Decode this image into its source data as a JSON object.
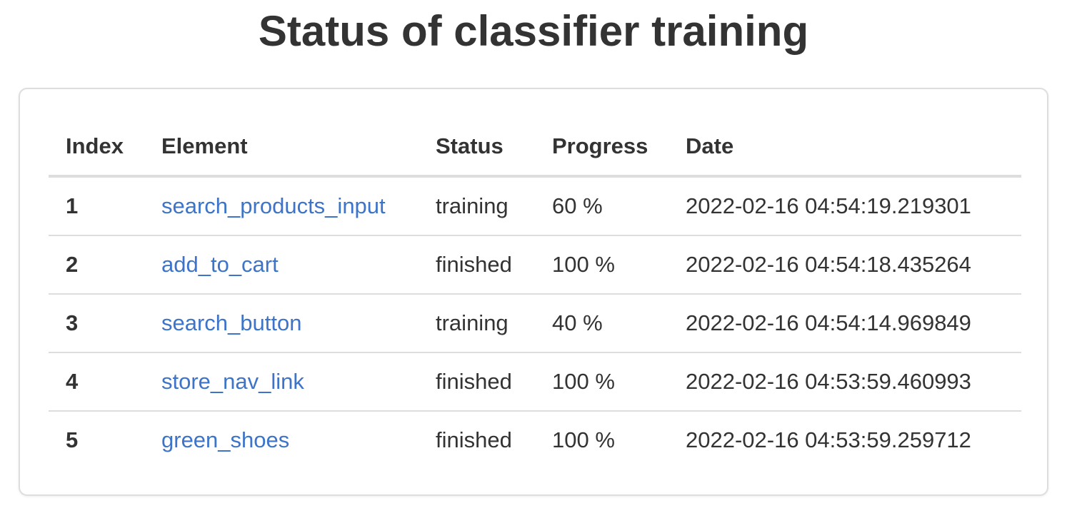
{
  "title": "Status of classifier training",
  "table": {
    "headers": {
      "index": "Index",
      "element": "Element",
      "status": "Status",
      "progress": "Progress",
      "date": "Date"
    },
    "rows": [
      {
        "index": "1",
        "element": "search_products_input",
        "status": "training",
        "progress": "60 %",
        "date": "2022-02-16 04:54:19.219301"
      },
      {
        "index": "2",
        "element": "add_to_cart",
        "status": "finished",
        "progress": "100 %",
        "date": "2022-02-16 04:54:18.435264"
      },
      {
        "index": "3",
        "element": "search_button",
        "status": "training",
        "progress": "40 %",
        "date": "2022-02-16 04:54:14.969849"
      },
      {
        "index": "4",
        "element": "store_nav_link",
        "status": "finished",
        "progress": "100 %",
        "date": "2022-02-16 04:53:59.460993"
      },
      {
        "index": "5",
        "element": "green_shoes",
        "status": "finished",
        "progress": "100 %",
        "date": "2022-02-16 04:53:59.259712"
      }
    ]
  },
  "colors": {
    "text": "#333333",
    "link": "#3d74c9",
    "border": "#dddddd"
  }
}
